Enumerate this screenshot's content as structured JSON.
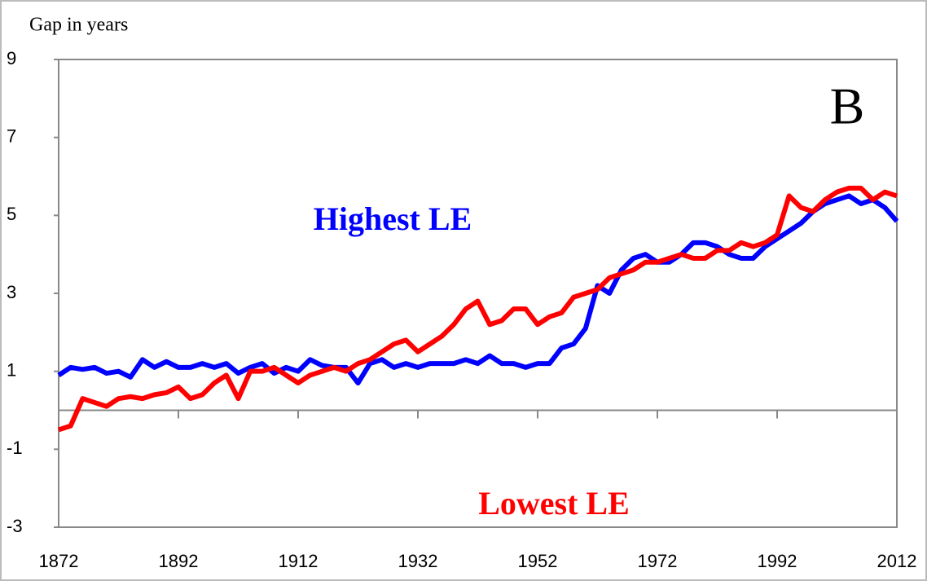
{
  "chart_data": {
    "type": "line",
    "y_label": "Gap in years",
    "annotation": "B",
    "x": [
      1872,
      1874,
      1876,
      1878,
      1880,
      1882,
      1884,
      1886,
      1888,
      1890,
      1892,
      1894,
      1896,
      1898,
      1900,
      1902,
      1904,
      1906,
      1908,
      1910,
      1912,
      1914,
      1916,
      1918,
      1920,
      1922,
      1924,
      1926,
      1928,
      1930,
      1932,
      1934,
      1936,
      1938,
      1940,
      1942,
      1944,
      1946,
      1948,
      1950,
      1952,
      1954,
      1956,
      1958,
      1960,
      1962,
      1964,
      1966,
      1968,
      1970,
      1972,
      1974,
      1976,
      1978,
      1980,
      1982,
      1984,
      1986,
      1988,
      1990,
      1992,
      1994,
      1996,
      1998,
      2000,
      2002,
      2004,
      2006,
      2008,
      2010,
      2012
    ],
    "series": [
      {
        "name": "Highest LE",
        "color": "#0000ff",
        "values": [
          0.9,
          1.1,
          1.05,
          1.1,
          0.95,
          1.0,
          0.85,
          1.3,
          1.1,
          1.25,
          1.1,
          1.1,
          1.2,
          1.1,
          1.2,
          0.95,
          1.1,
          1.2,
          0.95,
          1.1,
          1.0,
          1.3,
          1.15,
          1.1,
          1.1,
          0.7,
          1.2,
          1.3,
          1.1,
          1.2,
          1.1,
          1.2,
          1.2,
          1.2,
          1.3,
          1.2,
          1.4,
          1.2,
          1.2,
          1.1,
          1.2,
          1.2,
          1.6,
          1.7,
          2.1,
          3.2,
          3.0,
          3.6,
          3.9,
          4.0,
          3.8,
          3.8,
          4.0,
          4.3,
          4.3,
          4.2,
          4.0,
          3.9,
          3.9,
          4.2,
          4.4,
          4.6,
          4.8,
          5.1,
          5.3,
          5.4,
          5.5,
          5.3,
          5.4,
          5.2,
          4.85
        ]
      },
      {
        "name": "Lowest LE",
        "color": "#ff0000",
        "values": [
          -0.5,
          -0.4,
          0.3,
          0.2,
          0.1,
          0.3,
          0.35,
          0.3,
          0.4,
          0.45,
          0.6,
          0.3,
          0.4,
          0.7,
          0.9,
          0.3,
          1.0,
          1.0,
          1.1,
          0.9,
          0.7,
          0.9,
          1.0,
          1.1,
          1.0,
          1.2,
          1.3,
          1.5,
          1.7,
          1.8,
          1.5,
          1.7,
          1.9,
          2.2,
          2.6,
          2.8,
          2.2,
          2.3,
          2.6,
          2.6,
          2.2,
          2.4,
          2.5,
          2.9,
          3.0,
          3.1,
          3.4,
          3.5,
          3.6,
          3.8,
          3.8,
          3.9,
          4.0,
          3.9,
          3.9,
          4.1,
          4.1,
          4.3,
          4.2,
          4.3,
          4.5,
          5.5,
          5.2,
          5.1,
          5.4,
          5.6,
          5.7,
          5.7,
          5.4,
          5.6,
          5.5
        ]
      }
    ],
    "xlim": [
      1872,
      2012
    ],
    "ylim": [
      -3,
      9
    ],
    "xticks": [
      1872,
      1892,
      1912,
      1932,
      1952,
      1972,
      1992,
      2012
    ],
    "yticks": [
      -3,
      -1,
      1,
      3,
      5,
      7,
      9
    ]
  }
}
